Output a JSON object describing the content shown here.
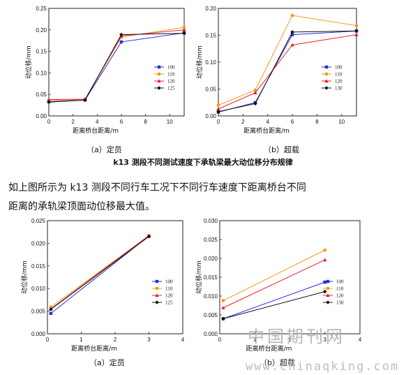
{
  "series_colors": {
    "100": "#1f2ee8",
    "110": "#f39a1d",
    "120": "#e8202a",
    "125": "#111111",
    "130": "#111111"
  },
  "caption_title": "k13 测段不同测试速度下承轨梁最大动位移分布规律",
  "paragraph": {
    "line1": "如上图所示为 k13 测段不同行车工况下不同行车速度下距离桥台不同",
    "line2": "距离的承轨梁顶面动位移最大值。"
  },
  "watermark": {
    "cn": "中国期刊网",
    "url": "www.chinaqking.com"
  },
  "chart_data": [
    {
      "type": "line",
      "caption": "（a）定员",
      "xlabel": "距离桥台距离/m",
      "ylabel": "动位移/mm",
      "xlim": [
        0,
        11.2
      ],
      "ylim": [
        0,
        0.25
      ],
      "xticks": [
        0,
        2,
        4,
        6,
        8,
        10
      ],
      "yticks": [
        0,
        0.05,
        0.1,
        0.15,
        0.2,
        0.25
      ],
      "ytick_labels": [
        "0.00",
        "0.05",
        "0.10",
        "0.15",
        "0.20",
        "0.25"
      ],
      "legend_position": "right",
      "x": [
        0,
        3,
        6,
        11.2
      ],
      "series": [
        {
          "name": "100",
          "key": "100",
          "values": [
            0.033,
            0.037,
            0.172,
            0.193
          ]
        },
        {
          "name": "110",
          "key": "110",
          "values": [
            0.036,
            0.038,
            0.183,
            0.206
          ]
        },
        {
          "name": "120",
          "key": "120",
          "values": [
            0.038,
            0.039,
            0.186,
            0.2
          ]
        },
        {
          "name": "125",
          "key": "125",
          "values": [
            0.032,
            0.037,
            0.189,
            0.192
          ]
        }
      ]
    },
    {
      "type": "line",
      "caption": "（b）超载",
      "xlabel": "距离桥台距离/m",
      "ylabel": "动位移/mm",
      "xlim": [
        0,
        11.2
      ],
      "ylim": [
        0,
        0.2
      ],
      "xticks": [
        0,
        2,
        4,
        6,
        8,
        10
      ],
      "yticks": [
        0,
        0.05,
        0.1,
        0.15,
        0.2
      ],
      "ytick_labels": [
        "0.00",
        "0.05",
        "0.10",
        "0.15",
        "0.20"
      ],
      "legend_position": "right",
      "x": [
        0,
        3,
        6,
        11.2
      ],
      "series": [
        {
          "name": "100",
          "key": "100",
          "values": [
            0.007,
            0.025,
            0.151,
            0.158
          ]
        },
        {
          "name": "110",
          "key": "110",
          "values": [
            0.02,
            0.048,
            0.187,
            0.168
          ]
        },
        {
          "name": "120",
          "key": "120",
          "values": [
            0.013,
            0.043,
            0.132,
            0.151
          ]
        },
        {
          "name": "130",
          "key": "130",
          "values": [
            0.008,
            0.023,
            0.156,
            0.158
          ]
        }
      ]
    },
    {
      "type": "line",
      "caption": "（a）定员",
      "xlabel": "距离桥台距离/m",
      "ylabel": "动位移/mm",
      "xlim": [
        0,
        4
      ],
      "ylim": [
        0,
        0.025
      ],
      "xticks": [
        0,
        1,
        2,
        3,
        4
      ],
      "yticks": [
        0,
        0.005,
        0.01,
        0.015,
        0.02,
        0.025
      ],
      "ytick_labels": [
        "0.000",
        "0.005",
        "0.010",
        "0.015",
        "0.020",
        "0.025"
      ],
      "legend_position": "right",
      "x": [
        0.1,
        3
      ],
      "series": [
        {
          "name": "100",
          "key": "100",
          "values": [
            0.0045,
            0.0216
          ]
        },
        {
          "name": "110",
          "key": "110",
          "values": [
            0.0059,
            0.0217
          ]
        },
        {
          "name": "120",
          "key": "120",
          "values": [
            0.0055,
            0.0217
          ]
        },
        {
          "name": "125",
          "key": "125",
          "values": [
            0.0054,
            0.0215
          ]
        }
      ]
    },
    {
      "type": "line",
      "caption": "（b）超载",
      "xlabel": "距离桥台距离/m",
      "ylabel": "动位移/mm",
      "xlim": [
        0,
        4
      ],
      "ylim": [
        0,
        0.03
      ],
      "xticks": [
        0,
        1,
        2,
        3,
        4
      ],
      "yticks": [
        0,
        0.005,
        0.01,
        0.015,
        0.02,
        0.025,
        0.03
      ],
      "ytick_labels": [
        "0.000",
        "0.005",
        "0.010",
        "0.015",
        "0.020",
        "0.025",
        "0.030"
      ],
      "legend_position": "right",
      "x": [
        0.1,
        3
      ],
      "series": [
        {
          "name": "100",
          "key": "100",
          "values": [
            0.004,
            0.0137
          ]
        },
        {
          "name": "110",
          "key": "110",
          "values": [
            0.0088,
            0.0222
          ]
        },
        {
          "name": "120",
          "key": "120",
          "values": [
            0.0069,
            0.0196
          ]
        },
        {
          "name": "130",
          "key": "130",
          "values": [
            0.004,
            0.0112
          ]
        }
      ]
    }
  ]
}
